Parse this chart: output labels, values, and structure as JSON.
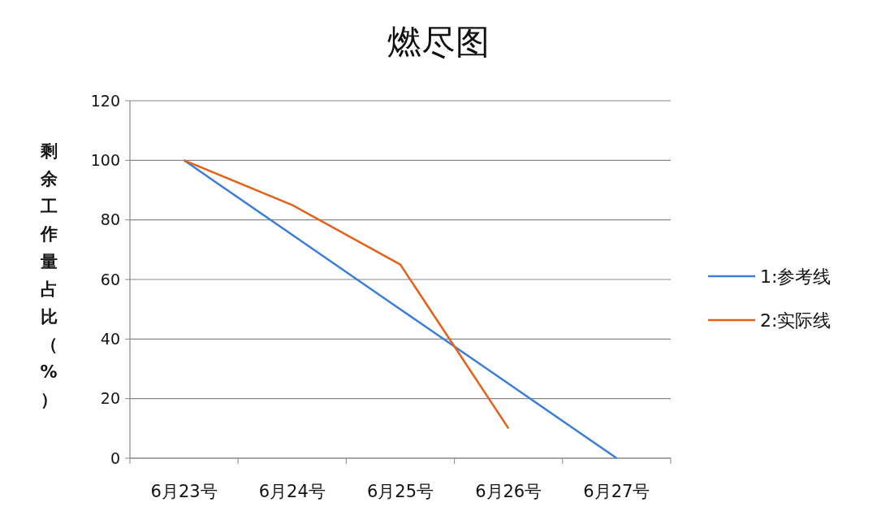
{
  "chart_data": {
    "type": "line",
    "title": "燃尽图",
    "ylabel": "剩余工作量占比（%）",
    "categories": [
      "6月23号",
      "6月24号",
      "6月25号",
      "6月26号",
      "6月27号"
    ],
    "series": [
      {
        "name": "1:参考线",
        "color": "#3b7dd8",
        "values": [
          100,
          75,
          50,
          25,
          0
        ]
      },
      {
        "name": "2:实际线",
        "color": "#e2621b",
        "values": [
          100,
          85,
          65,
          10,
          null
        ]
      }
    ],
    "ylim": [
      0,
      120
    ],
    "yticks": [
      0,
      20,
      40,
      60,
      80,
      100,
      120
    ],
    "grid": "y",
    "legend": "right",
    "marker": "none",
    "line_style": "solid"
  }
}
